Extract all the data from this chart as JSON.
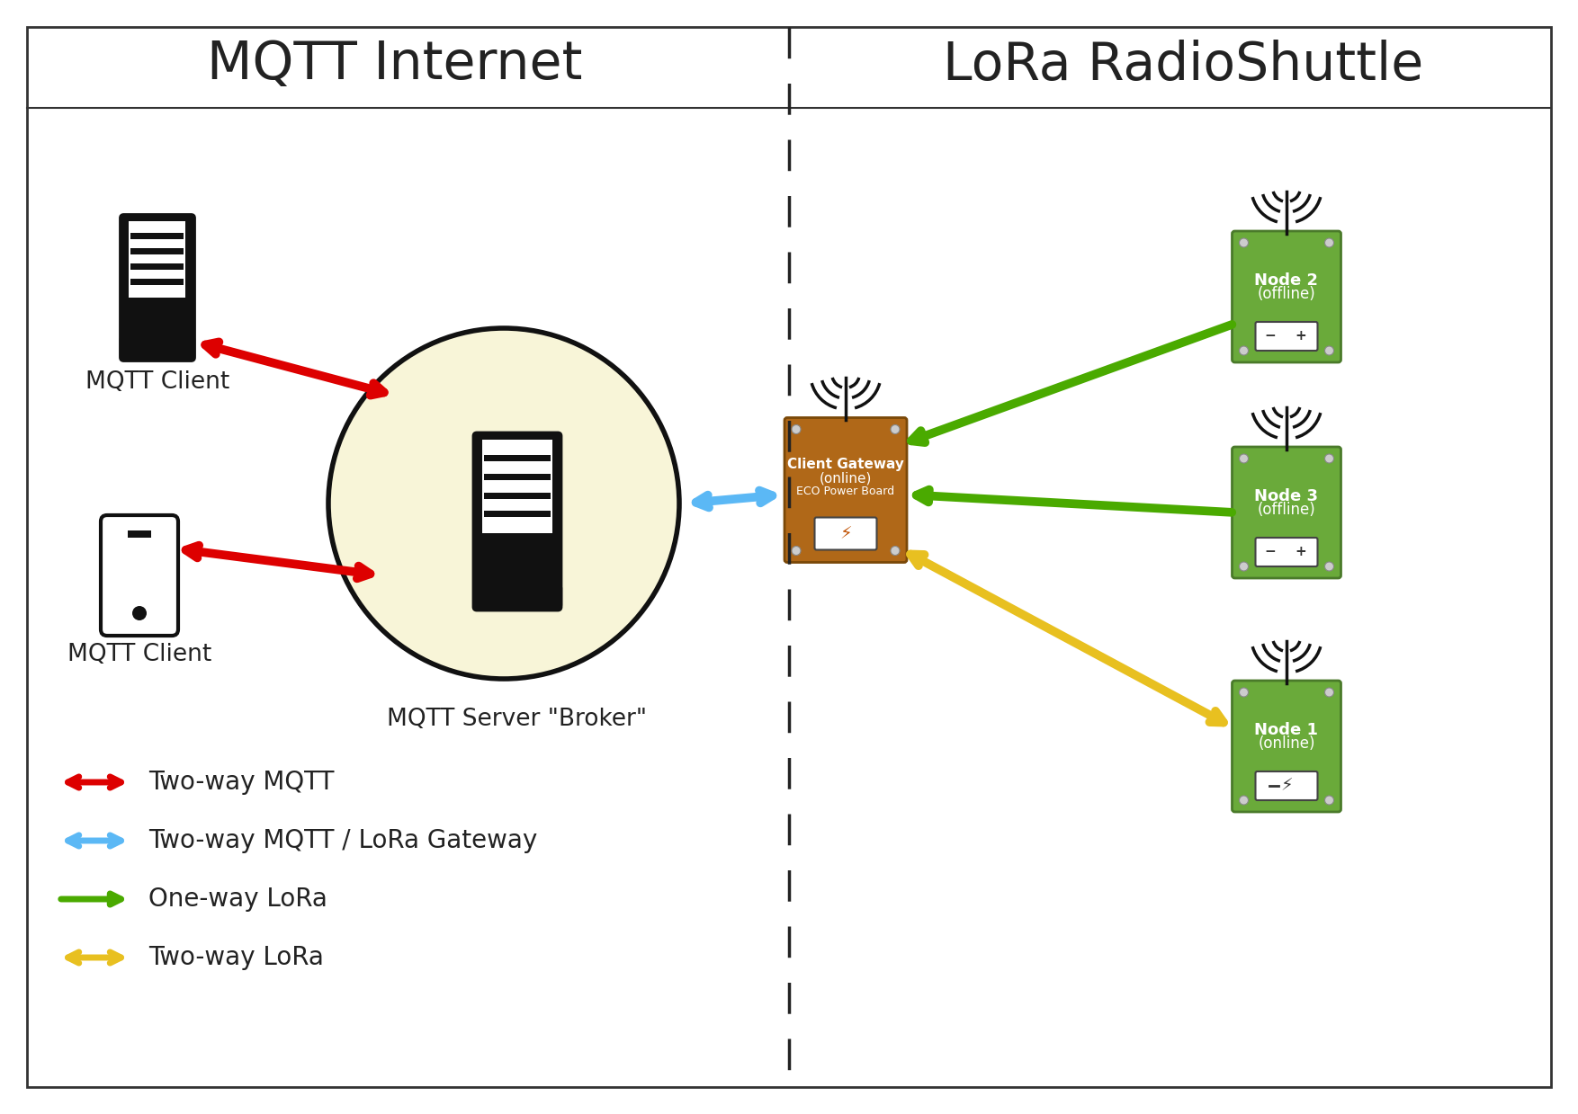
{
  "title_left": "MQTT Internet",
  "title_right": "LoRa RadioShuttle",
  "bg_color": "#ffffff",
  "border_color": "#333333",
  "broker_circle_color": "#f8f5d8",
  "broker_circle_border": "#111111",
  "server_color": "#111111",
  "gateway_color": "#b06818",
  "node_color": "#6aaa3a",
  "legend_items": [
    {
      "color": "#dd0000",
      "label": "Two-way MQTT",
      "style": "double"
    },
    {
      "color": "#5bb8f5",
      "label": "Two-way MQTT / LoRa Gateway",
      "style": "double"
    },
    {
      "color": "#4aaa00",
      "label": "One-way LoRa",
      "style": "single"
    },
    {
      "color": "#e8c020",
      "label": "Two-way LoRa",
      "style": "double"
    }
  ]
}
